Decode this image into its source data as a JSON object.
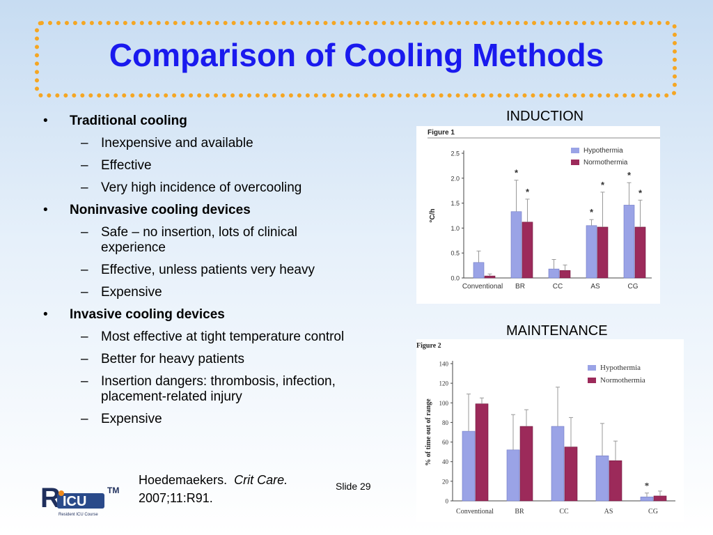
{
  "title": "Comparison of Cooling Methods",
  "bullets": [
    {
      "label": "Traditional cooling",
      "subs": [
        "Inexpensive and available",
        "Effective",
        "Very high incidence of overcooling"
      ]
    },
    {
      "label": "Noninvasive cooling devices",
      "subs": [
        "Safe – no insertion, lots of clinical experience",
        "Effective, unless patients very heavy",
        "Expensive"
      ]
    },
    {
      "label": "Invasive cooling devices",
      "subs": [
        "Most effective at tight temperature control",
        "Better for heavy patients",
        "Insertion dangers: thrombosis, infection, placement-related injury",
        "Expensive"
      ]
    }
  ],
  "citation": {
    "author": "Hoedemaekers.",
    "journal": "Crit Care.",
    "ref": "2007;11:R91."
  },
  "slide_number": "Slide 29",
  "logo": {
    "text": "RICU",
    "tm": "TM",
    "caption": "Resident ICU Course"
  },
  "induction_label": "INDUCTION",
  "maintenance_label": "MAINTENANCE",
  "colors": {
    "hypothermia": "#9aa3e6",
    "normothermia": "#9c2a5a",
    "title": "#1a1aee",
    "border": "#f5a623"
  },
  "chart_data": [
    {
      "type": "bar",
      "figure_label": "Figure 1",
      "categories": [
        "Conventional",
        "BR",
        "CC",
        "AS",
        "CG"
      ],
      "series": [
        {
          "name": "Hypothermia",
          "values": [
            0.31,
            1.33,
            0.18,
            1.05,
            1.46
          ],
          "errors": [
            0.23,
            0.63,
            0.19,
            0.12,
            0.45
          ]
        },
        {
          "name": "Normothermia",
          "values": [
            0.04,
            1.12,
            0.15,
            1.02,
            1.02
          ],
          "errors": [
            0.04,
            0.46,
            0.11,
            0.7,
            0.54
          ]
        }
      ],
      "ylabel": "°C/h",
      "ylim": [
        0,
        2.5
      ],
      "yticks": [
        "0.0",
        "0.5",
        "1.0",
        "1.5",
        "2.0",
        "2.5"
      ],
      "annotations": [
        "*",
        "*",
        "*",
        "*",
        "*",
        "*"
      ]
    },
    {
      "type": "bar",
      "figure_label": "Figure 2",
      "categories": [
        "Conventional",
        "BR",
        "CC",
        "AS",
        "CG"
      ],
      "series": [
        {
          "name": "Hypothermia",
          "values": [
            71,
            52,
            76,
            46,
            4
          ],
          "errors": [
            38,
            36,
            40,
            33,
            4
          ]
        },
        {
          "name": "Normothermia",
          "values": [
            99,
            76,
            55,
            41,
            5
          ],
          "errors": [
            6,
            17,
            30,
            20,
            5
          ]
        }
      ],
      "ylabel": "% of time out of range",
      "ylim": [
        0,
        140
      ],
      "yticks": [
        "0",
        "20",
        "40",
        "60",
        "80",
        "100",
        "120",
        "140"
      ],
      "annotations": [
        "*"
      ]
    }
  ]
}
